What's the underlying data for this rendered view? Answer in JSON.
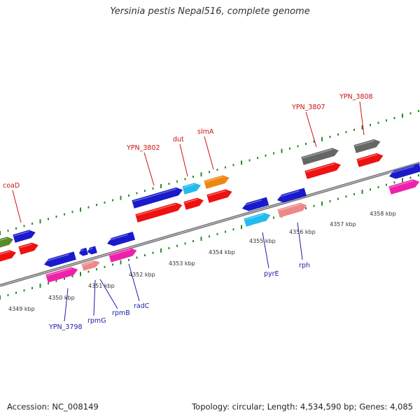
{
  "title": "Yersinia pestis Nepal516, complete genome",
  "footer": {
    "accession": "Accession: NC_008149",
    "summary": "Topology: circular; Length: 4,534,590 bp; Genes: 4,085"
  },
  "colors": {
    "backbone": "#888888",
    "tick": "#2a8a2a",
    "label_top": "#cc1111",
    "label_bottom": "#1b1baa"
  },
  "kbp_labels": [
    "4349 kbp",
    "4350 kbp",
    "4351 kbp",
    "4352 kbp",
    "4353 kbp",
    "4354 kbp",
    "4355 kbp",
    "4356 kbp",
    "4357 kbp",
    "4358 kbp"
  ],
  "gene_labels_top": [
    "coaD",
    "YPN_3802",
    "dut",
    "slmA",
    "YPN_3807",
    "YPN_3808"
  ],
  "gene_labels_bottom": [
    "YPN_3798",
    "rpmG",
    "rpmB",
    "radC",
    "pyrE",
    "rph"
  ]
}
